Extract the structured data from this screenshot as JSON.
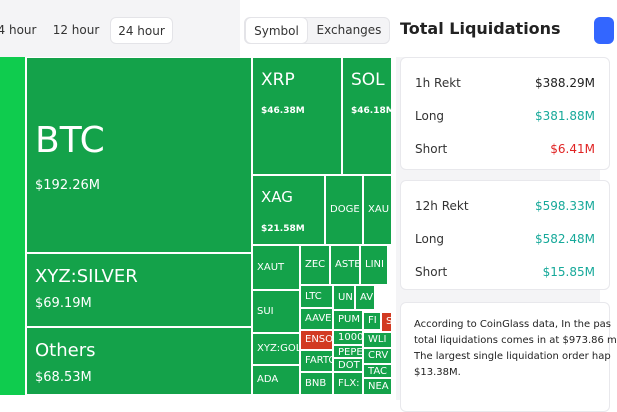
{
  "tabs": [
    "4 hour",
    "12 hour",
    "24 hour"
  ],
  "toggle": [
    "Symbol",
    "Exchanges"
  ],
  "panel_title": "Total Liquidations",
  "treemap": [
    {
      "label": "BTC",
      "value": "$192.26M"
    },
    {
      "label": "XYZ:SILVER",
      "value": "$69.19M"
    },
    {
      "label": "Others",
      "value": "$68.53M"
    },
    {
      "label": "XRP",
      "value": "$46.38M"
    },
    {
      "label": "SOL",
      "value": "$46.18M"
    },
    {
      "label": "XAG",
      "value": "$21.58M"
    },
    {
      "label": "DOGE"
    },
    {
      "label": "XAU"
    },
    {
      "label": "XAUT"
    },
    {
      "label": "ZEC"
    },
    {
      "label": "ASTE"
    },
    {
      "label": "LINI"
    },
    {
      "label": "SUI"
    },
    {
      "label": "LTC"
    },
    {
      "label": "UN"
    },
    {
      "label": "AV"
    },
    {
      "label": "AAVE"
    },
    {
      "label": "PUM"
    },
    {
      "label": "FI"
    },
    {
      "label": "S"
    },
    {
      "label": "XYZ:GOL"
    },
    {
      "label": "ENSO"
    },
    {
      "label": "1000"
    },
    {
      "label": "WLI"
    },
    {
      "label": "FARTC"
    },
    {
      "label": "PEPE"
    },
    {
      "label": "CRV"
    },
    {
      "label": "ADA"
    },
    {
      "label": "DOT"
    },
    {
      "label": "TAC"
    },
    {
      "label": "BNB"
    },
    {
      "label": "FLX:"
    },
    {
      "label": "NEA"
    }
  ],
  "cards": [
    {
      "rows": [
        {
          "label": "1h Rekt",
          "value": "$388.29M"
        },
        {
          "label": "Long",
          "value": "$381.88M"
        },
        {
          "label": "Short",
          "value": "$6.41M"
        }
      ]
    },
    {
      "rows": [
        {
          "label": "12h Rekt",
          "value": "$598.33M"
        },
        {
          "label": "Long",
          "value": "$582.48M"
        },
        {
          "label": "Short",
          "value": "$15.85M"
        }
      ]
    }
  ],
  "summary": [
    "According to CoinGlass data, In the pas",
    "total liquidations comes in at $973.86 m",
    "The largest single liquidation order hap",
    "$13.38M."
  ]
}
